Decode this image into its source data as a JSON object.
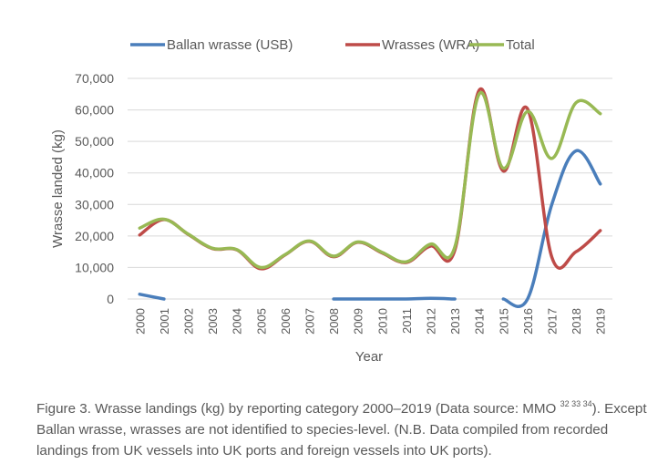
{
  "chart_data": {
    "type": "line",
    "title": "",
    "xlabel": "Year",
    "ylabel": "Wrasse landed (kg)",
    "ylim": [
      0,
      70000
    ],
    "yticks": [
      0,
      10000,
      20000,
      30000,
      40000,
      50000,
      60000,
      70000
    ],
    "ytick_labels": [
      "0",
      "10,000",
      "20,000",
      "30,000",
      "40,000",
      "50,000",
      "60,000",
      "70,000"
    ],
    "grid": true,
    "legend_position": "top",
    "x": [
      "2000",
      "2001",
      "2002",
      "2003",
      "2004",
      "2005",
      "2006",
      "2007",
      "2008",
      "2009",
      "2010",
      "2011",
      "2012",
      "2013",
      "2014",
      "2015",
      "2016",
      "2017",
      "2018",
      "2019"
    ],
    "series": [
      {
        "name": "Ballan wrasse (USB)",
        "color": "#4a7ebb",
        "values": [
          1500,
          0,
          null,
          null,
          null,
          null,
          null,
          null,
          0,
          0,
          0,
          0,
          200,
          0,
          null,
          0,
          0,
          30000,
          47000,
          36500
        ]
      },
      {
        "name": "Wrasses (WRA)",
        "color": "#be4b48",
        "values": [
          20300,
          25200,
          20500,
          16000,
          15600,
          9600,
          14000,
          18300,
          13400,
          18000,
          14600,
          11600,
          16800,
          15500,
          66200,
          40600,
          60300,
          13300,
          15000,
          21700
        ]
      },
      {
        "name": "Total",
        "color": "#98b954",
        "values": [
          22500,
          25300,
          20600,
          16100,
          15700,
          10000,
          14100,
          18400,
          13600,
          18100,
          14800,
          11800,
          17400,
          16500,
          65000,
          41500,
          59500,
          44600,
          62300,
          58800
        ]
      }
    ]
  },
  "caption": {
    "text_before": "Figure 3. Wrasse landings (kg) by reporting category 2000–2019 (Data source: MMO ",
    "superscript": "32 33 34",
    "text_after": "). Except Ballan wrasse, wrasses are not identified to species-level. (N.B. Data compiled from recorded landings from UK vessels into UK ports and foreign vessels into UK ports)."
  }
}
